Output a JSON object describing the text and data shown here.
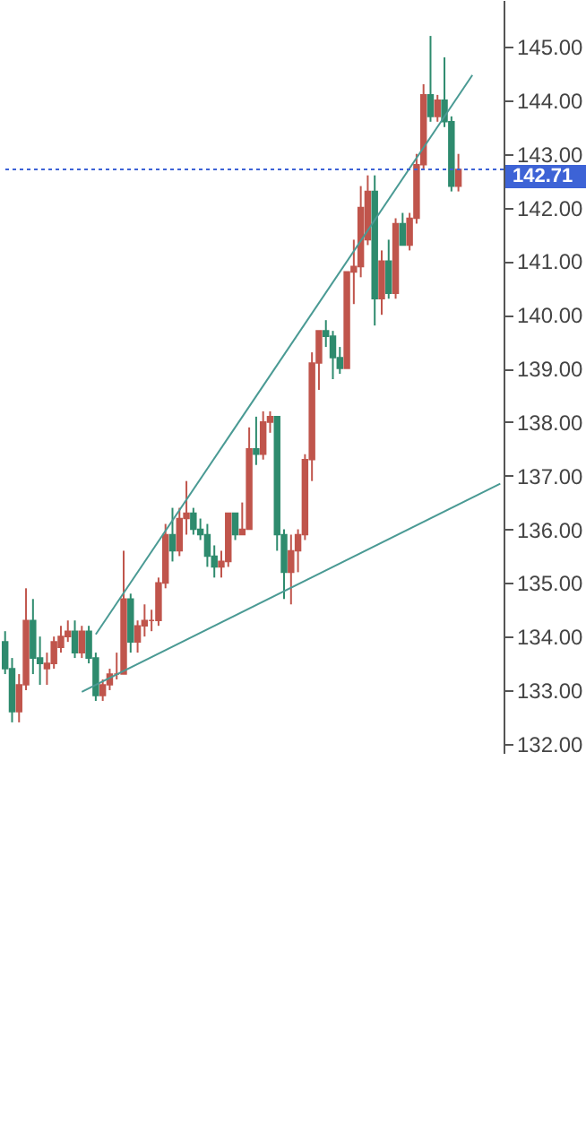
{
  "chart_data": {
    "type": "candlestick",
    "categories": [
      null,
      null,
      null,
      null,
      null,
      null,
      null,
      null,
      null,
      null,
      null,
      null,
      null,
      null,
      null,
      null,
      null,
      null,
      null,
      null,
      null,
      null,
      null,
      null,
      null,
      null,
      null,
      null,
      null,
      null,
      null,
      null,
      null,
      null,
      null,
      null,
      null,
      null,
      null,
      null,
      null,
      null,
      null,
      null,
      null,
      null,
      null,
      null,
      null,
      null,
      null,
      null,
      null,
      null,
      null,
      null,
      null,
      null,
      null,
      null,
      null,
      null,
      null,
      null,
      null,
      null,
      null,
      null,
      null,
      null,
      null,
      null
    ],
    "ohlc": [
      [
        133.9,
        134.1,
        133.3,
        133.4
      ],
      [
        133.4,
        133.6,
        132.4,
        132.6
      ],
      [
        132.6,
        133.3,
        132.4,
        133.1
      ],
      [
        133.1,
        134.9,
        133.0,
        134.3
      ],
      [
        134.3,
        134.7,
        133.3,
        133.6
      ],
      [
        133.6,
        134.0,
        133.1,
        133.5
      ],
      [
        133.4,
        133.7,
        133.1,
        133.5
      ],
      [
        133.5,
        134.0,
        133.4,
        133.9
      ],
      [
        133.8,
        134.2,
        133.7,
        134.0
      ],
      [
        134.0,
        134.3,
        133.9,
        134.1
      ],
      [
        134.1,
        134.3,
        133.6,
        133.7
      ],
      [
        133.7,
        134.2,
        133.6,
        134.1
      ],
      [
        134.1,
        134.2,
        133.5,
        133.6
      ],
      [
        133.6,
        133.7,
        132.8,
        132.9
      ],
      [
        132.9,
        133.2,
        132.8,
        133.1
      ],
      [
        133.1,
        133.4,
        133.0,
        133.3
      ],
      [
        133.3,
        133.7,
        133.2,
        133.3
      ],
      [
        133.3,
        135.6,
        133.3,
        134.7
      ],
      [
        134.7,
        134.8,
        133.7,
        133.9
      ],
      [
        133.9,
        134.3,
        133.7,
        134.2
      ],
      [
        134.2,
        134.6,
        134.0,
        134.3
      ],
      [
        134.3,
        134.5,
        134.1,
        134.3
      ],
      [
        134.3,
        135.1,
        134.2,
        135.0
      ],
      [
        135.0,
        136.1,
        134.9,
        135.9
      ],
      [
        135.9,
        136.4,
        135.4,
        135.6
      ],
      [
        135.6,
        136.4,
        135.5,
        136.2
      ],
      [
        136.2,
        136.9,
        135.9,
        136.3
      ],
      [
        136.3,
        136.4,
        135.9,
        136.0
      ],
      [
        136.0,
        136.2,
        135.8,
        135.9
      ],
      [
        135.9,
        136.1,
        135.3,
        135.5
      ],
      [
        135.5,
        135.7,
        135.1,
        135.3
      ],
      [
        135.3,
        135.6,
        135.1,
        135.4
      ],
      [
        135.4,
        136.3,
        135.3,
        136.3
      ],
      [
        136.3,
        136.3,
        135.8,
        135.9
      ],
      [
        135.9,
        136.5,
        135.9,
        136.0
      ],
      [
        136.0,
        137.9,
        136.0,
        137.5
      ],
      [
        137.5,
        138.1,
        137.2,
        137.4
      ],
      [
        137.4,
        138.2,
        137.3,
        138.0
      ],
      [
        138.0,
        138.2,
        137.8,
        138.1
      ],
      [
        138.1,
        138.1,
        135.6,
        135.9
      ],
      [
        135.9,
        136.0,
        134.7,
        135.2
      ],
      [
        135.2,
        135.9,
        134.6,
        135.6
      ],
      [
        135.6,
        136.0,
        135.2,
        135.9
      ],
      [
        135.9,
        137.4,
        135.8,
        137.3
      ],
      [
        137.3,
        139.3,
        136.9,
        139.1
      ],
      [
        139.1,
        139.7,
        138.6,
        139.7
      ],
      [
        139.7,
        139.9,
        139.4,
        139.6
      ],
      [
        139.6,
        139.7,
        138.8,
        139.2
      ],
      [
        139.2,
        139.4,
        138.9,
        139.0
      ],
      [
        139.0,
        140.8,
        139.0,
        140.8
      ],
      [
        140.8,
        141.4,
        140.2,
        140.9
      ],
      [
        140.9,
        142.4,
        140.7,
        142.0
      ],
      [
        141.4,
        142.6,
        141.3,
        142.3
      ],
      [
        142.3,
        142.6,
        139.8,
        140.3
      ],
      [
        140.3,
        141.2,
        140.0,
        141.0
      ],
      [
        141.0,
        141.4,
        140.3,
        140.4
      ],
      [
        140.4,
        141.8,
        140.3,
        141.7
      ],
      [
        141.7,
        141.9,
        141.3,
        141.3
      ],
      [
        141.3,
        141.9,
        141.2,
        141.8
      ],
      [
        141.8,
        143.0,
        141.7,
        142.8
      ],
      [
        142.8,
        144.3,
        142.7,
        144.1
      ],
      [
        144.1,
        145.2,
        143.6,
        143.7
      ],
      [
        143.7,
        144.1,
        143.6,
        144.0
      ],
      [
        144.0,
        144.8,
        143.5,
        143.6
      ],
      [
        143.6,
        143.7,
        142.3,
        142.4
      ],
      [
        142.4,
        143.0,
        142.3,
        142.71
      ],
      null,
      null,
      null,
      null,
      null,
      null
    ],
    "colors": [
      "#2e8b6e",
      "#2e8b6e",
      "#c0554c",
      "#c0554c",
      "#2e8b6e",
      "#2e8b6e",
      "#c0554c",
      "#c0554c",
      "#c0554c",
      "#c0554c",
      "#2e8b6e",
      "#c0554c",
      "#2e8b6e",
      "#2e8b6e",
      "#c0554c",
      "#c0554c",
      "#c0554c",
      "#c0554c",
      "#2e8b6e",
      "#c0554c",
      "#c0554c",
      "#c0554c",
      "#c0554c",
      "#c0554c",
      "#2e8b6e",
      "#c0554c",
      "#c0554c",
      "#2e8b6e",
      "#2e8b6e",
      "#2e8b6e",
      "#2e8b6e",
      "#c0554c",
      "#c0554c",
      "#2e8b6e",
      "#c0554c",
      "#c0554c",
      "#2e8b6e",
      "#c0554c",
      "#c0554c",
      "#2e8b6e",
      "#2e8b6e",
      "#c0554c",
      "#c0554c",
      "#c0554c",
      "#c0554c",
      "#c0554c",
      "#2e8b6e",
      "#2e8b6e",
      "#2e8b6e",
      "#c0554c",
      "#c0554c",
      "#c0554c",
      "#c0554c",
      "#2e8b6e",
      "#c0554c",
      "#2e8b6e",
      "#c0554c",
      "#2e8b6e",
      "#c0554c",
      "#c0554c",
      "#c0554c",
      "#2e8b6e",
      "#c0554c",
      "#2e8b6e",
      "#2e8b6e",
      "#c0554c",
      null,
      null,
      null,
      null,
      null,
      null
    ],
    "series": [
      {
        "type": "line",
        "color": "#4a9a94",
        "values": [
          null,
          null,
          null,
          null,
          null,
          null,
          null,
          null,
          null,
          null,
          null,
          null,
          null,
          134.04,
          null,
          null,
          null,
          null,
          null,
          null,
          null,
          null,
          null,
          null,
          null,
          null,
          null,
          null,
          null,
          null,
          null,
          null,
          null,
          null,
          null,
          null,
          null,
          null,
          null,
          null,
          null,
          null,
          null,
          null,
          null,
          null,
          null,
          null,
          null,
          null,
          null,
          null,
          null,
          null,
          null,
          null,
          null,
          null,
          null,
          null,
          null,
          null,
          null,
          null,
          null,
          null,
          null,
          144.47,
          null,
          null,
          null,
          null
        ]
      },
      {
        "type": "line",
        "color": "#4a9a94",
        "values": [
          null,
          null,
          null,
          null,
          null,
          null,
          null,
          null,
          null,
          null,
          null,
          132.97,
          null,
          null,
          null,
          null,
          null,
          null,
          null,
          null,
          null,
          null,
          null,
          null,
          null,
          null,
          null,
          null,
          null,
          null,
          null,
          null,
          null,
          null,
          null,
          null,
          null,
          null,
          null,
          null,
          null,
          null,
          null,
          null,
          null,
          null,
          null,
          null,
          null,
          null,
          null,
          null,
          null,
          null,
          null,
          null,
          null,
          null,
          null,
          null,
          null,
          null,
          null,
          null,
          null,
          null,
          null,
          null,
          null,
          null,
          null,
          136.85
        ]
      }
    ],
    "ylim": [
      131.83,
      145.87
    ],
    "yticks": [
      {
        "value": 132,
        "label": "132.00"
      },
      {
        "value": 133,
        "label": "133.00"
      },
      {
        "value": 134,
        "label": "134.00"
      },
      {
        "value": 135,
        "label": "135.00"
      },
      {
        "value": 136,
        "label": "136.00"
      },
      {
        "value": 137,
        "label": "137.00"
      },
      {
        "value": 138,
        "label": "138.00"
      },
      {
        "value": 139,
        "label": "139.00"
      },
      {
        "value": 140,
        "label": "140.00"
      },
      {
        "value": 141,
        "label": "141.00"
      },
      {
        "value": 142,
        "label": "142.00"
      },
      {
        "value": 143,
        "label": "143.00"
      },
      {
        "value": 144,
        "label": "144.00"
      },
      {
        "value": 145,
        "label": "145.00"
      }
    ],
    "ref_lines": [
      {
        "axis": "y",
        "value": 142.71,
        "label": "142.71",
        "color": "#3d63d6",
        "line_style": "dotted"
      }
    ],
    "tick_labels": "y"
  }
}
